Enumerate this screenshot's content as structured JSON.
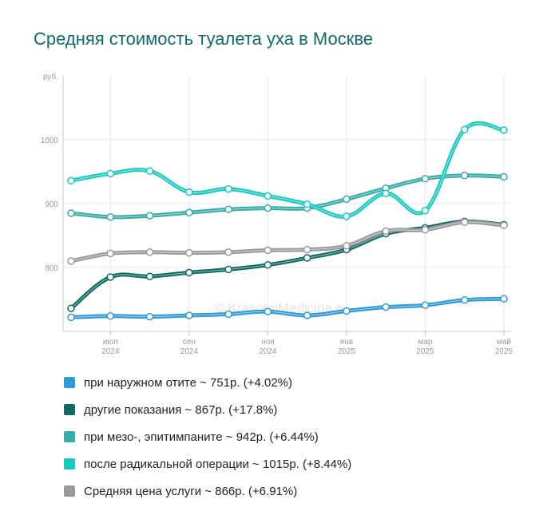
{
  "title": "Средняя стоимость туалета уха в Москве",
  "watermark": "© KrasotaiMedicina.ru",
  "chart_data": {
    "type": "line",
    "y_unit": "руб.",
    "ylim": [
      700,
      1100
    ],
    "y_ticks": [
      {
        "value": 800,
        "label": "800"
      },
      {
        "value": 900,
        "label": "900"
      },
      {
        "value": 1000,
        "label": "1000"
      }
    ],
    "x_ticks": [
      {
        "index": 1,
        "month": "июл",
        "year": "2024"
      },
      {
        "index": 3,
        "month": "сен",
        "year": "2024"
      },
      {
        "index": 5,
        "month": "ноя",
        "year": "2024"
      },
      {
        "index": 7,
        "month": "янв",
        "year": "2025"
      },
      {
        "index": 9,
        "month": "мар",
        "year": "2025"
      },
      {
        "index": 11,
        "month": "май",
        "year": "2025"
      }
    ],
    "x": [
      "2024-06",
      "2024-07",
      "2024-08",
      "2024-09",
      "2024-10",
      "2024-11",
      "2024-12",
      "2025-01",
      "2025-02",
      "2025-03",
      "2025-04",
      "2025-05"
    ],
    "grid": true,
    "series": [
      {
        "name": "при наружном отите",
        "color": "#2e9ad6",
        "legend": "при наружном отите ~ 751р. (+4.02%)",
        "values": [
          722,
          724,
          723,
          725,
          727,
          731,
          725,
          732,
          738,
          741,
          749,
          751
        ]
      },
      {
        "name": "другие показания",
        "color": "#0e6b64",
        "legend": "другие показания ~ 867р. (+17.8%)",
        "values": [
          736,
          785,
          786,
          792,
          797,
          804,
          815,
          828,
          853,
          862,
          872,
          867
        ]
      },
      {
        "name": "при мезо-, эпитимпаните",
        "color": "#36ada6",
        "legend": "при мезо-, эпитимпаните ~ 942р. (+6.44%)",
        "values": [
          885,
          879,
          881,
          886,
          891,
          893,
          893,
          907,
          924,
          939,
          944,
          942
        ]
      },
      {
        "name": "после радикальной операции",
        "color": "#18c9c0",
        "legend": "после радикальной операции ~ 1015р. (+8.44%)",
        "values": [
          936,
          947,
          951,
          918,
          923,
          912,
          899,
          880,
          916,
          889,
          1016,
          1015
        ]
      },
      {
        "name": "Средняя цена услуги",
        "color": "#9a9a9a",
        "legend": "Средняя цена услуги ~ 866р. (+6.91%)",
        "values": [
          810,
          822,
          824,
          823,
          824,
          827,
          828,
          834,
          857,
          859,
          871,
          866
        ]
      }
    ]
  }
}
